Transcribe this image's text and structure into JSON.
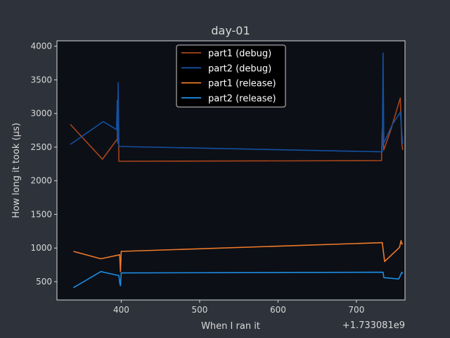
{
  "chart_data": {
    "type": "line",
    "title": "day-01",
    "xlabel": "When I ran it",
    "ylabel": "How long it took (µs)",
    "x_offset_label": "+1.733081e9",
    "xlim": [
      318,
      762
    ],
    "ylim": [
      228,
      4080
    ],
    "xticks": [
      400,
      500,
      600,
      700
    ],
    "yticks": [
      500,
      1000,
      1500,
      2000,
      2500,
      3000,
      3500,
      4000
    ],
    "grid": false,
    "legend_position": "top-center",
    "colors": {
      "figure_bg": "#2e333b",
      "axes_bg": "#0c0f16",
      "axis": "#d8d8d8"
    },
    "series": [
      {
        "name": "part1 (debug)",
        "color": "#a8441b",
        "points": [
          [
            335,
            2840
          ],
          [
            376,
            2320
          ],
          [
            395,
            2620
          ],
          [
            395.5,
            2980
          ],
          [
            396,
            2580
          ],
          [
            396.5,
            2850
          ],
          [
            397,
            2290
          ],
          [
            732,
            2300
          ],
          [
            733,
            2780
          ],
          [
            734,
            2640
          ],
          [
            735,
            2460
          ],
          [
            744,
            2760
          ],
          [
            756,
            3230
          ],
          [
            758,
            2560
          ],
          [
            759,
            2460
          ]
        ]
      },
      {
        "name": "part2 (debug)",
        "color": "#1450a0",
        "points": [
          [
            335,
            2540
          ],
          [
            377,
            2880
          ],
          [
            394,
            2760
          ],
          [
            395,
            3200
          ],
          [
            395.5,
            2560
          ],
          [
            396,
            3460
          ],
          [
            396.5,
            3040
          ],
          [
            397,
            2510
          ],
          [
            733,
            2430
          ],
          [
            734,
            3900
          ],
          [
            735,
            2560
          ],
          [
            746,
            2840
          ],
          [
            756,
            3020
          ],
          [
            758,
            2700
          ],
          [
            759,
            2550
          ]
        ]
      },
      {
        "name": "part1 (release)",
        "color": "#f07a28",
        "points": [
          [
            339,
            950
          ],
          [
            374,
            840
          ],
          [
            398,
            900
          ],
          [
            399,
            650
          ],
          [
            400,
            950
          ],
          [
            733,
            1080
          ],
          [
            736,
            800
          ],
          [
            755,
            1010
          ],
          [
            757,
            1110
          ],
          [
            758,
            1060
          ],
          [
            759,
            1070
          ]
        ]
      },
      {
        "name": "part2 (release)",
        "color": "#1d8ee4",
        "points": [
          [
            339,
            410
          ],
          [
            374,
            650
          ],
          [
            397,
            590
          ],
          [
            398,
            490
          ],
          [
            399,
            440
          ],
          [
            400,
            630
          ],
          [
            734,
            640
          ],
          [
            735,
            560
          ],
          [
            754,
            540
          ],
          [
            758,
            640
          ],
          [
            759,
            620
          ]
        ]
      }
    ]
  }
}
